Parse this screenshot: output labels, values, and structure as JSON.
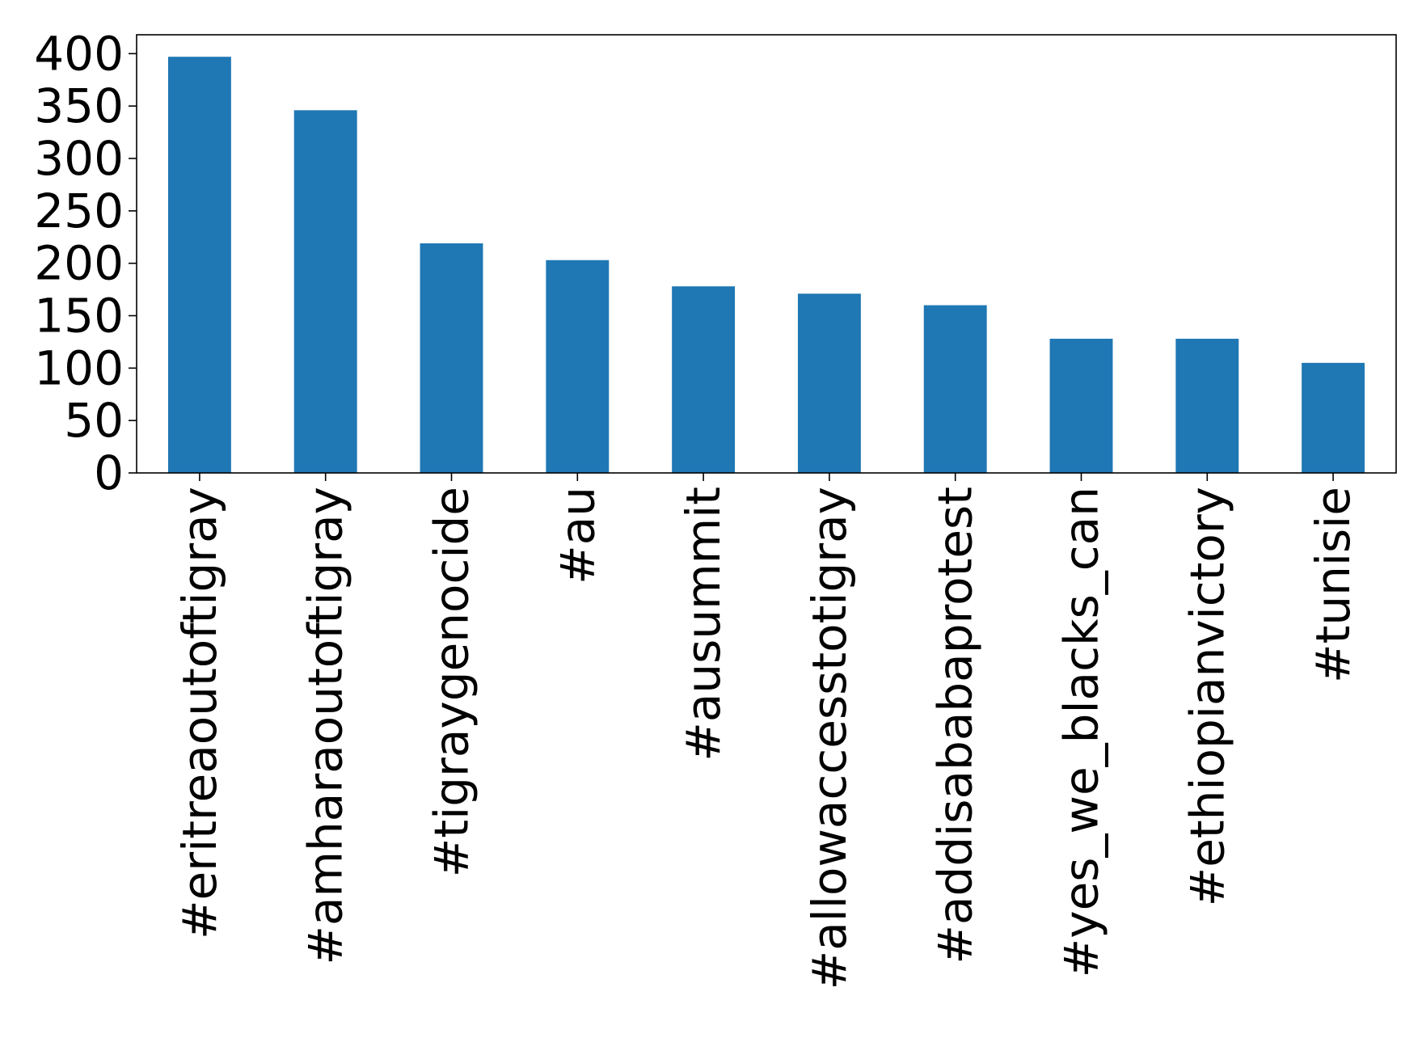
{
  "chart_data": {
    "type": "bar",
    "title": "",
    "xlabel": "",
    "ylabel": "",
    "categories": [
      "#eritreaoutoftigray",
      "#amharaoutoftigray",
      "#tigraygenocide",
      "#au",
      "#ausummit",
      "#allowaccesstotigray",
      "#addisababaprotest",
      "#yes_we_blacks_can",
      "#ethiopianvictory",
      "#tunisie"
    ],
    "values": [
      397,
      346,
      219,
      203,
      178,
      171,
      160,
      128,
      128,
      105
    ],
    "ylim": [
      0,
      418
    ],
    "yticks": [
      0,
      50,
      100,
      150,
      200,
      250,
      300,
      350,
      400
    ],
    "grid": false,
    "legend": "none",
    "colors": {
      "bar": "#1f77b4",
      "axes": "#000000",
      "background": "#ffffff"
    }
  }
}
